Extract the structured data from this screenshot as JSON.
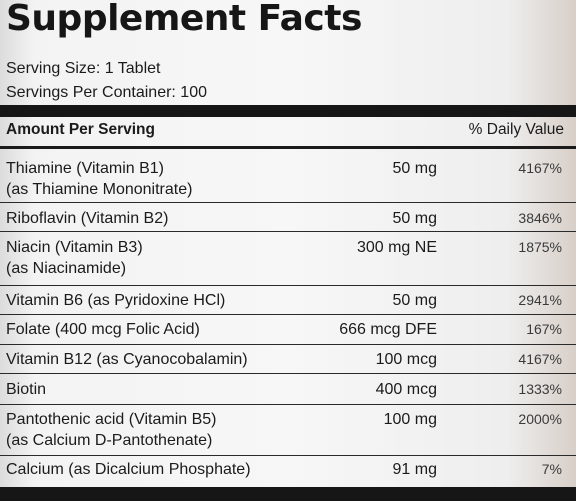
{
  "title": "Supplement Facts",
  "serving_size": "Serving Size: 1 Tablet",
  "servings_per_container": "Servings Per Container: 100",
  "header": {
    "amount_per_serving": "Amount Per Serving",
    "daily_value": "% Daily Value"
  },
  "rows": [
    {
      "name": "Thiamine (Vitamin B1)",
      "name2": "(as Thiamine Mononitrate)",
      "amount": "50 mg",
      "dv": "4167%"
    },
    {
      "name": "Riboflavin (Vitamin B2)",
      "name2": "",
      "amount": "50 mg",
      "dv": "3846%"
    },
    {
      "name": "Niacin (Vitamin B3)",
      "name2": "(as Niacinamide)",
      "amount": "300 mg NE",
      "dv": "1875%"
    },
    {
      "name": "Vitamin B6 (as Pyridoxine HCl)",
      "name2": "",
      "amount": "50 mg",
      "dv": "2941%"
    },
    {
      "name": "Folate (400 mcg Folic Acid)",
      "name2": "",
      "amount": "666 mcg DFE",
      "dv": "167%"
    },
    {
      "name": "Vitamin B12 (as Cyanocobalamin)",
      "name2": "",
      "amount": "100 mcg",
      "dv": "4167%"
    },
    {
      "name": "Biotin",
      "name2": "",
      "amount": "400 mcg",
      "dv": "1333%"
    },
    {
      "name": "Pantothenic acid (Vitamin B5)",
      "name2": "(as Calcium D-Pantothenate)",
      "amount": "100 mg",
      "dv": "2000%"
    },
    {
      "name": "Calcium (as Dicalcium Phosphate)",
      "name2": "",
      "amount": "91 mg",
      "dv": "7%"
    }
  ]
}
